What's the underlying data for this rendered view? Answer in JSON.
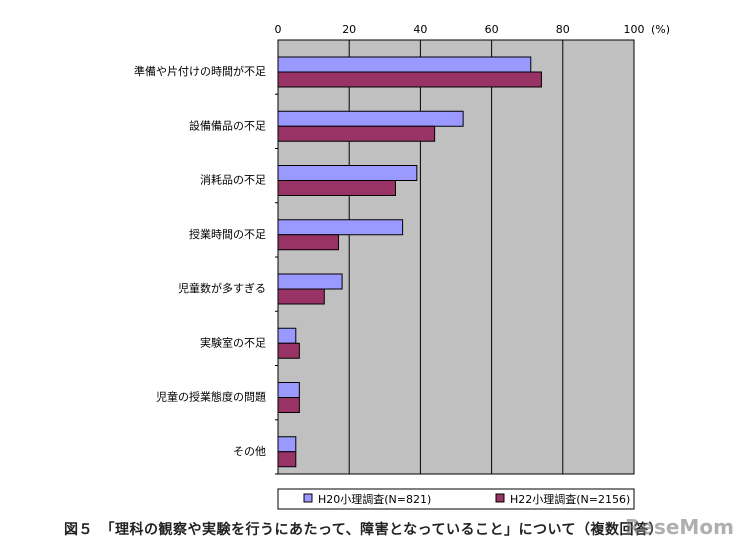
{
  "chart_data": {
    "type": "bar",
    "orientation": "horizontal",
    "categories": [
      "準備や片付けの時間が不足",
      "設備備品の不足",
      "消耗品の不足",
      "授業時間の不足",
      "児童数が多すぎる",
      "実験室の不足",
      "児童の授業態度の問題",
      "その他"
    ],
    "series": [
      {
        "name": "H20小理調査(N=821)",
        "color": "#9999ff",
        "values": [
          71,
          52,
          39,
          35,
          18,
          5,
          6,
          5
        ]
      },
      {
        "name": "H22小理調査(N=2156)",
        "color": "#993366",
        "values": [
          74,
          44,
          33,
          17,
          13,
          6,
          6,
          5
        ]
      }
    ],
    "xlim": [
      0,
      100
    ],
    "xticks": [
      "0",
      "20",
      "40",
      "60",
      "80",
      "100"
    ],
    "unit_label": "(%)",
    "grid": true,
    "legend_position": "bottom",
    "plot_background": "#c0c0c0"
  },
  "caption": "図５　「理科の観察や実験を行うにあたって、障害となっていること」について（複数回答）",
  "watermark": "ReseMom"
}
